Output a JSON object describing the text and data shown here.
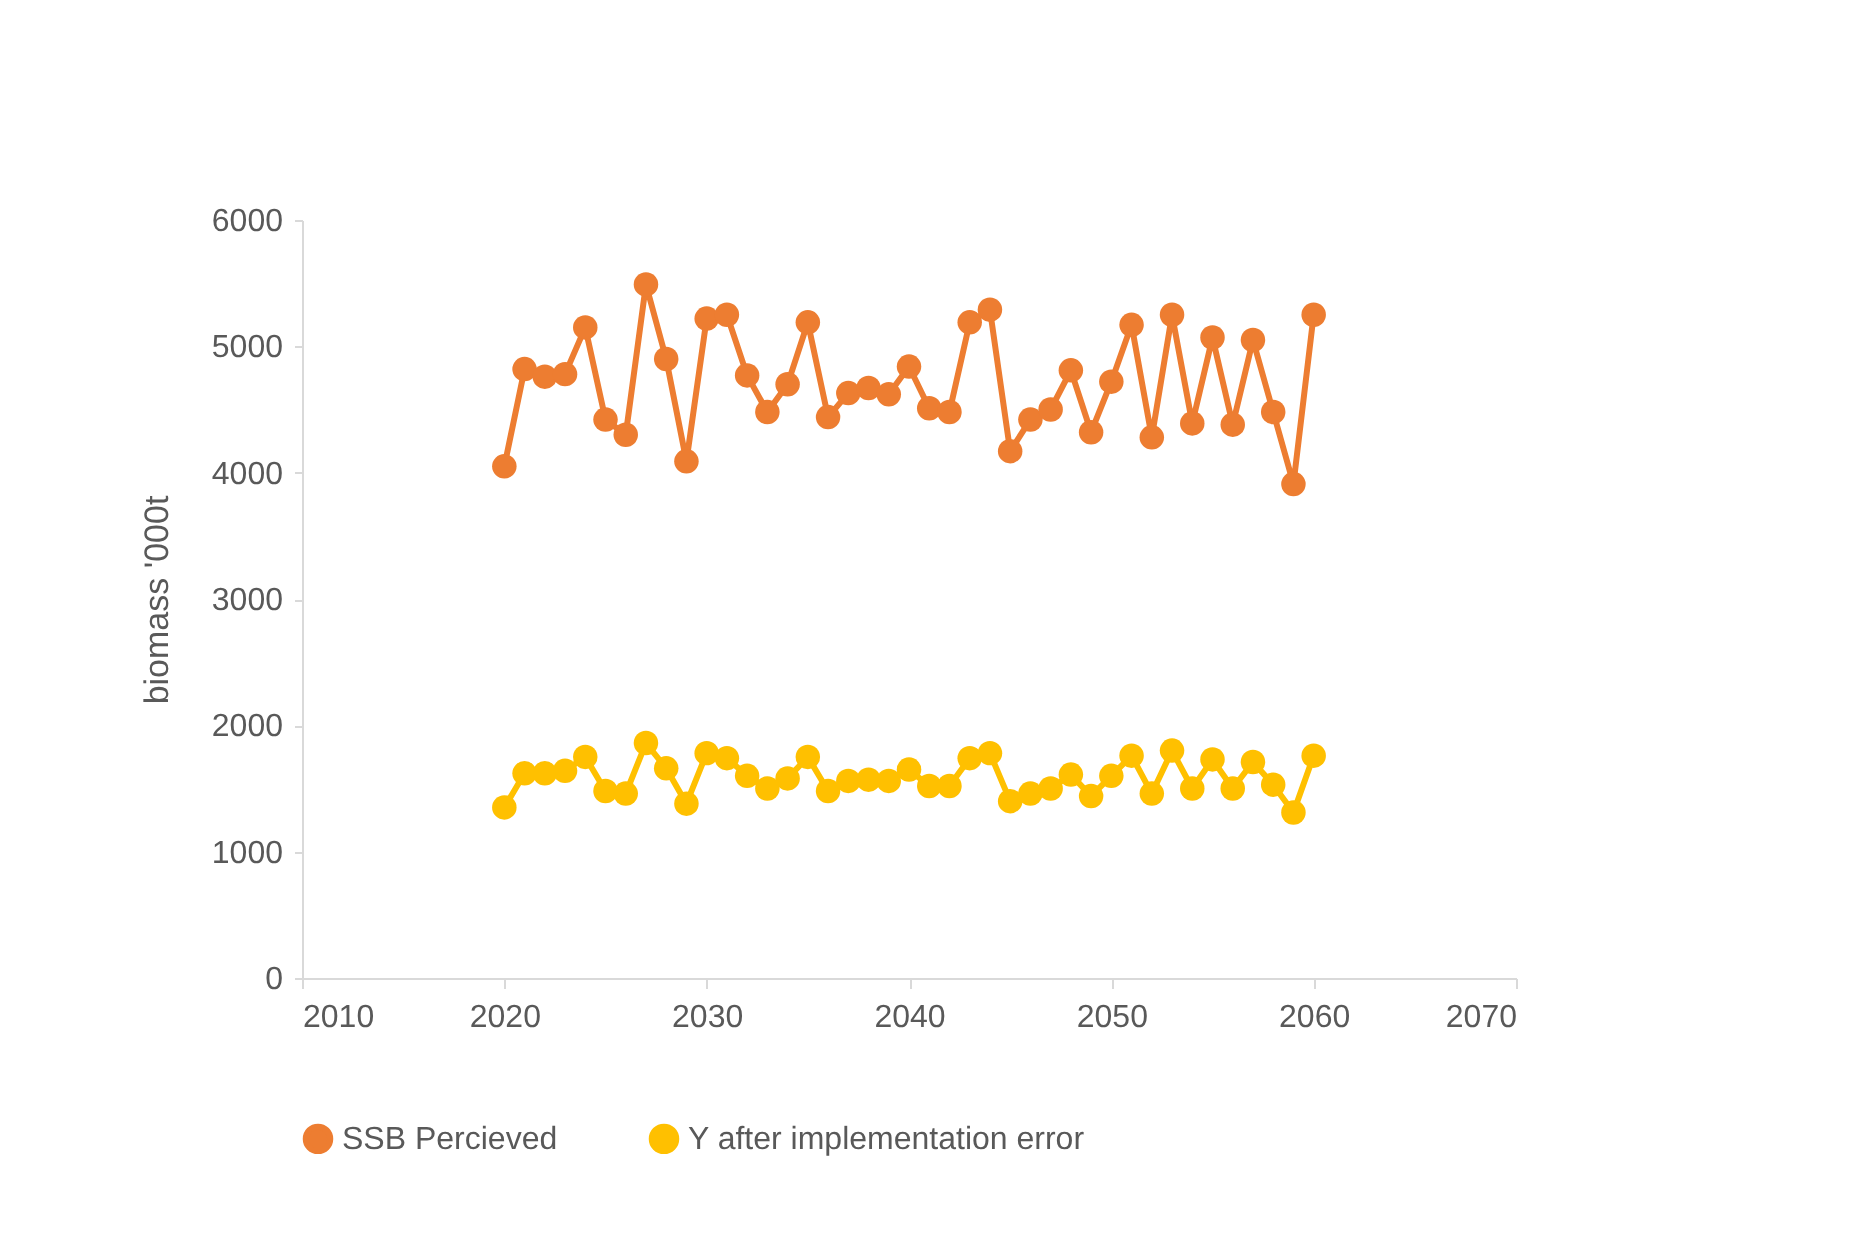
{
  "chart_data": {
    "type": "line",
    "ylabel": "biomass '000t",
    "x": [
      2020,
      2021,
      2022,
      2023,
      2024,
      2025,
      2026,
      2027,
      2028,
      2029,
      2030,
      2031,
      2032,
      2033,
      2034,
      2035,
      2036,
      2037,
      2038,
      2039,
      2040,
      2041,
      2042,
      2043,
      2044,
      2045,
      2046,
      2047,
      2048,
      2049,
      2050,
      2051,
      2052,
      2053,
      2054,
      2055,
      2056,
      2057,
      2058,
      2059,
      2060
    ],
    "series": [
      {
        "name": "SSB Percieved",
        "color": "#ed7d31",
        "values": [
          4050,
          4820,
          4760,
          4780,
          5150,
          4420,
          4300,
          5490,
          4900,
          4090,
          5220,
          5250,
          4770,
          4480,
          4700,
          5190,
          4440,
          4630,
          4670,
          4620,
          4840,
          4510,
          4480,
          5190,
          5290,
          4170,
          4420,
          4500,
          4810,
          4320,
          4720,
          5170,
          4280,
          5250,
          4390,
          5070,
          4380,
          5050,
          4480,
          3910,
          5250
        ]
      },
      {
        "name": "Y after implementation error",
        "color": "#ffc000",
        "values": [
          1350,
          1620,
          1620,
          1640,
          1750,
          1480,
          1460,
          1860,
          1660,
          1380,
          1780,
          1740,
          1600,
          1500,
          1580,
          1750,
          1480,
          1560,
          1570,
          1560,
          1650,
          1520,
          1520,
          1740,
          1780,
          1400,
          1460,
          1500,
          1610,
          1440,
          1600,
          1760,
          1460,
          1800,
          1500,
          1730,
          1500,
          1710,
          1530,
          1310,
          1760
        ]
      }
    ],
    "xlim": [
      2010,
      2070
    ],
    "xticks": [
      2010,
      2020,
      2030,
      2040,
      2050,
      2060,
      2070
    ],
    "ylim": [
      0,
      6000
    ],
    "yticks": [
      0,
      1000,
      2000,
      3000,
      4000,
      5000,
      6000
    ],
    "grid": false,
    "legend": "bottom",
    "marker": "circle",
    "line_style": "solid"
  }
}
